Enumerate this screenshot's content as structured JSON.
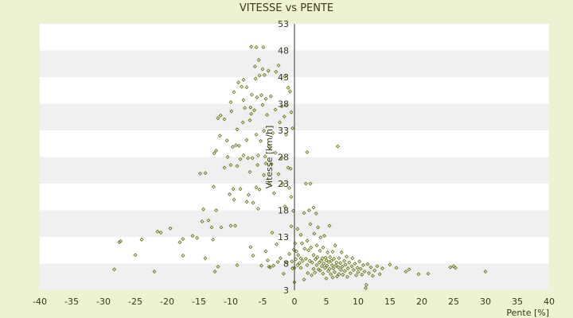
{
  "colors": {
    "page_background": "#eef2d2",
    "plot_band_light": "#ffffff",
    "plot_band_dark": "#f0f0f0",
    "axis": "#333333",
    "marker": "#6b7a1f"
  },
  "chart_data": {
    "type": "scatter",
    "title": "VITESSE vs PENTE",
    "xlabel": "Pente [%]",
    "ylabel": "Vitesse [km/h]",
    "xlim": [
      -40,
      40
    ],
    "ylim": [
      3,
      53
    ],
    "x_ticks": [
      -40,
      -35,
      -30,
      -25,
      -20,
      -15,
      -10,
      -5,
      0,
      5,
      10,
      15,
      20,
      25,
      30,
      35,
      40
    ],
    "y_ticks": [
      3,
      8,
      13,
      18,
      23,
      28,
      33,
      38,
      43,
      48,
      53
    ],
    "grid": "horizontal alternating bands",
    "legend": "none",
    "y_axis_position": "at x = 0",
    "series": [
      {
        "marker": "small diamond",
        "points": [
          [
            -28.3,
            6.9
          ],
          [
            -27.5,
            12.0
          ],
          [
            -27.3,
            12.2
          ],
          [
            -25.0,
            9.6
          ],
          [
            -24.0,
            12.5
          ],
          [
            -22.0,
            6.5
          ],
          [
            -21.5,
            14.0
          ],
          [
            -21.0,
            13.8
          ],
          [
            -19.5,
            14.6
          ],
          [
            -18.0,
            12.0
          ],
          [
            -17.5,
            12.6
          ],
          [
            -17.5,
            9.5
          ],
          [
            -16.0,
            13.2
          ],
          [
            -15.3,
            12.8
          ],
          [
            -14.8,
            24.9
          ],
          [
            -14.5,
            15.9
          ],
          [
            -14.3,
            18.2
          ],
          [
            -14.0,
            25.0
          ],
          [
            -14.0,
            9.0
          ],
          [
            -13.5,
            16.1
          ],
          [
            -13.0,
            14.8
          ],
          [
            -12.8,
            12.5
          ],
          [
            -12.7,
            22.4
          ],
          [
            -12.6,
            28.7
          ],
          [
            -12.5,
            6.5
          ],
          [
            -12.3,
            18.0
          ],
          [
            -12.3,
            29.2
          ],
          [
            -12.0,
            35.3
          ],
          [
            -12.0,
            7.4
          ],
          [
            -11.7,
            32.0
          ],
          [
            -11.6,
            35.8
          ],
          [
            -11.5,
            14.8
          ],
          [
            -11.0,
            35.1
          ],
          [
            -11.0,
            26.0
          ],
          [
            -10.6,
            31.1
          ],
          [
            -10.5,
            28.0
          ],
          [
            -10.2,
            21.0
          ],
          [
            -10.0,
            15.1
          ],
          [
            -10.0,
            26.5
          ],
          [
            -10.0,
            38.3
          ],
          [
            -9.9,
            36.6
          ],
          [
            -9.7,
            29.9
          ],
          [
            -9.6,
            22.0
          ],
          [
            -9.5,
            40.2
          ],
          [
            -9.5,
            20.0
          ],
          [
            -9.3,
            15.1
          ],
          [
            -9.2,
            30.2
          ],
          [
            -9.0,
            26.3
          ],
          [
            -9.0,
            33.2
          ],
          [
            -9.0,
            7.7
          ],
          [
            -8.8,
            42.0
          ],
          [
            -8.7,
            30.1
          ],
          [
            -8.5,
            27.6
          ],
          [
            -8.5,
            22.0
          ],
          [
            -8.3,
            41.2
          ],
          [
            -8.1,
            34.5
          ],
          [
            -8.0,
            28.3
          ],
          [
            -8.0,
            42.5
          ],
          [
            -8.0,
            38.7
          ],
          [
            -7.8,
            37.2
          ],
          [
            -7.5,
            41.1
          ],
          [
            -7.5,
            31.2
          ],
          [
            -7.5,
            19.6
          ],
          [
            -7.3,
            27.8
          ],
          [
            -7.2,
            20.9
          ],
          [
            -7.0,
            34.9
          ],
          [
            -7.0,
            25.2
          ],
          [
            -6.9,
            11.1
          ],
          [
            -6.9,
            37.3
          ],
          [
            -6.8,
            48.7
          ],
          [
            -6.8,
            36.1
          ],
          [
            -6.7,
            39.7
          ],
          [
            -6.6,
            27.8
          ],
          [
            -6.5,
            9.5
          ],
          [
            -6.5,
            19.4
          ],
          [
            -6.3,
            36.8
          ],
          [
            -6.2,
            45.0
          ],
          [
            -6.1,
            42.7
          ],
          [
            -6.0,
            22.3
          ],
          [
            -6.0,
            32.2
          ],
          [
            -6.0,
            48.6
          ],
          [
            -5.9,
            39.2
          ],
          [
            -5.8,
            26.5
          ],
          [
            -5.7,
            28.3
          ],
          [
            -5.7,
            18.3
          ],
          [
            -5.6,
            46.2
          ],
          [
            -5.5,
            43.3
          ],
          [
            -5.5,
            21.9
          ],
          [
            -5.3,
            31.0
          ],
          [
            -5.2,
            39.6
          ],
          [
            -5.2,
            7.6
          ],
          [
            -5.0,
            44.5
          ],
          [
            -5.0,
            37.8
          ],
          [
            -4.9,
            48.6
          ],
          [
            -4.8,
            32.9
          ],
          [
            -4.8,
            24.6
          ],
          [
            -4.7,
            43.4
          ],
          [
            -4.6,
            28.1
          ],
          [
            -4.5,
            10.3
          ],
          [
            -4.5,
            26.8
          ],
          [
            -4.5,
            38.9
          ],
          [
            -4.3,
            35.9
          ],
          [
            -4.2,
            8.6
          ],
          [
            -4.1,
            44.2
          ],
          [
            -4.0,
            30.0
          ],
          [
            -4.0,
            7.4
          ],
          [
            -4.0,
            23.0
          ],
          [
            -3.8,
            7.3
          ],
          [
            -3.7,
            39.4
          ],
          [
            -3.6,
            26.7
          ],
          [
            -3.5,
            13.8
          ],
          [
            -3.4,
            32.5
          ],
          [
            -3.3,
            7.6
          ],
          [
            -3.2,
            21.2
          ],
          [
            -3.0,
            28.8
          ],
          [
            -3.0,
            36.9
          ],
          [
            -2.9,
            44.0
          ],
          [
            -2.8,
            11.6
          ],
          [
            -2.6,
            8.3
          ],
          [
            -2.5,
            45.2
          ],
          [
            -2.5,
            24.8
          ],
          [
            -2.3,
            34.5
          ],
          [
            -2.2,
            9.0
          ],
          [
            -2.0,
            27.9
          ],
          [
            -2.0,
            37.5
          ],
          [
            -1.8,
            22.9
          ],
          [
            -1.7,
            6.1
          ],
          [
            -1.6,
            35.6
          ],
          [
            -1.5,
            43.1
          ],
          [
            -1.5,
            18.7
          ],
          [
            -1.3,
            32.2
          ],
          [
            -1.2,
            8.2
          ],
          [
            -1.2,
            37.7
          ],
          [
            -1.0,
            26.0
          ],
          [
            -1.0,
            41.0
          ],
          [
            -0.8,
            22.2
          ],
          [
            -0.8,
            9.8
          ],
          [
            -0.7,
            40.3
          ],
          [
            -0.6,
            25.8
          ],
          [
            -0.5,
            20.5
          ],
          [
            -0.5,
            15.0
          ],
          [
            -0.5,
            36.4
          ],
          [
            -0.4,
            8.4
          ],
          [
            -0.3,
            33.4
          ],
          [
            -0.3,
            7.1
          ],
          [
            -0.2,
            17.9
          ],
          [
            -0.1,
            10.6
          ],
          [
            0.0,
            4.5
          ],
          [
            0.0,
            7.2
          ],
          [
            0.1,
            11.8
          ],
          [
            0.2,
            8.8
          ],
          [
            0.3,
            10.3
          ],
          [
            0.5,
            14.5
          ],
          [
            0.5,
            7.7
          ],
          [
            0.6,
            9.6
          ],
          [
            0.8,
            8.1
          ],
          [
            1.0,
            13.4
          ],
          [
            1.0,
            9.0
          ],
          [
            1.0,
            7.2
          ],
          [
            1.2,
            11.8
          ],
          [
            1.3,
            8.5
          ],
          [
            1.5,
            5.0
          ],
          [
            1.5,
            17.5
          ],
          [
            1.6,
            10.8
          ],
          [
            1.8,
            23.0
          ],
          [
            1.8,
            8.9
          ],
          [
            2.0,
            28.9
          ],
          [
            2.0,
            12.3
          ],
          [
            2.0,
            7.7
          ],
          [
            2.1,
            6.2
          ],
          [
            2.2,
            10.5
          ],
          [
            2.3,
            18.0
          ],
          [
            2.4,
            8.5
          ],
          [
            2.5,
            23.0
          ],
          [
            2.5,
            15.4
          ],
          [
            2.6,
            11.0
          ],
          [
            2.7,
            5.8
          ],
          [
            2.8,
            8.2
          ],
          [
            3.0,
            18.5
          ],
          [
            3.0,
            9.6
          ],
          [
            3.0,
            7.0
          ],
          [
            3.1,
            13.6
          ],
          [
            3.2,
            6.3
          ],
          [
            3.3,
            8.8
          ],
          [
            3.4,
            17.4
          ],
          [
            3.5,
            11.4
          ],
          [
            3.5,
            7.7
          ],
          [
            3.6,
            9.2
          ],
          [
            3.7,
            14.8
          ],
          [
            3.8,
            6.9
          ],
          [
            3.9,
            8.2
          ],
          [
            4.0,
            10.4
          ],
          [
            4.0,
            6.7
          ],
          [
            4.1,
            12.9
          ],
          [
            4.2,
            8.5
          ],
          [
            4.3,
            7.5
          ],
          [
            4.4,
            9.0
          ],
          [
            4.5,
            11.0
          ],
          [
            4.5,
            6.1
          ],
          [
            4.6,
            8.0
          ],
          [
            4.7,
            13.2
          ],
          [
            4.8,
            7.2
          ],
          [
            4.9,
            9.1
          ],
          [
            5.0,
            8.6
          ],
          [
            5.0,
            5.2
          ],
          [
            5.1,
            7.6
          ],
          [
            5.2,
            10.1
          ],
          [
            5.3,
            6.6
          ],
          [
            5.4,
            8.3
          ],
          [
            5.5,
            15.1
          ],
          [
            5.5,
            7.0
          ],
          [
            5.6,
            9.2
          ],
          [
            5.7,
            6.0
          ],
          [
            5.8,
            8.5
          ],
          [
            5.9,
            7.7
          ],
          [
            6.0,
            10.2
          ],
          [
            6.0,
            5.4
          ],
          [
            6.1,
            7.1
          ],
          [
            6.2,
            8.9
          ],
          [
            6.3,
            6.4
          ],
          [
            6.4,
            11.4
          ],
          [
            6.5,
            7.6
          ],
          [
            6.6,
            8.2
          ],
          [
            6.7,
            5.6
          ],
          [
            6.8,
            30.0
          ],
          [
            6.9,
            7.3
          ],
          [
            7.0,
            9.0
          ],
          [
            7.0,
            6.0
          ],
          [
            7.2,
            8.1
          ],
          [
            7.3,
            6.8
          ],
          [
            7.4,
            10.1
          ],
          [
            7.5,
            7.4
          ],
          [
            7.6,
            5.9
          ],
          [
            7.8,
            8.5
          ],
          [
            7.9,
            6.6
          ],
          [
            8.0,
            7.8
          ],
          [
            8.2,
            9.3
          ],
          [
            8.3,
            5.5
          ],
          [
            8.4,
            7.1
          ],
          [
            8.6,
            8.2
          ],
          [
            8.8,
            6.2
          ],
          [
            9.0,
            7.5
          ],
          [
            9.1,
            9.0
          ],
          [
            9.3,
            6.8
          ],
          [
            9.5,
            8.0
          ],
          [
            9.7,
            5.8
          ],
          [
            9.9,
            7.2
          ],
          [
            10.0,
            6.4
          ],
          [
            10.2,
            8.4
          ],
          [
            10.4,
            7.0
          ],
          [
            10.6,
            5.9
          ],
          [
            10.8,
            7.7
          ],
          [
            11.0,
            6.5
          ],
          [
            11.2,
            3.4
          ],
          [
            11.3,
            4.0
          ],
          [
            11.5,
            7.9
          ],
          [
            11.7,
            6.2
          ],
          [
            12.0,
            7.3
          ],
          [
            12.3,
            5.7
          ],
          [
            12.6,
            6.7
          ],
          [
            13.0,
            7.5
          ],
          [
            13.4,
            6.0
          ],
          [
            13.8,
            7.1
          ],
          [
            15.0,
            7.8
          ],
          [
            16.0,
            7.2
          ],
          [
            17.5,
            6.5
          ],
          [
            18.0,
            6.9
          ],
          [
            19.5,
            6.0
          ],
          [
            21.0,
            6.1
          ],
          [
            24.5,
            7.3
          ],
          [
            25.0,
            7.5
          ],
          [
            25.3,
            7.2
          ],
          [
            30.0,
            6.5
          ]
        ]
      }
    ]
  }
}
